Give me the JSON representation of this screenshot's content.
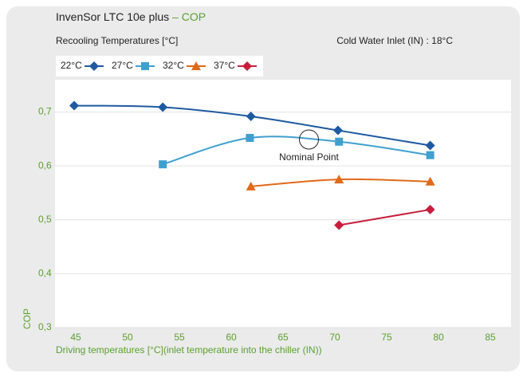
{
  "chart_data": {
    "type": "line",
    "title": "InvenSor LTC 10e plus",
    "title_highlight": "– COP",
    "subtitle": "Recooling Temperatures [°C]",
    "note": "Cold Water Inlet (IN) : 18°C",
    "xlabel": "Driving temperatures [°C](inlet temperature into the chiller (IN))",
    "ylabel": "COP",
    "xlim": [
      43,
      87
    ],
    "xticks": [
      45,
      50,
      55,
      60,
      65,
      70,
      75,
      80,
      85
    ],
    "ylim": [
      0.3,
      0.76
    ],
    "yticks": [
      {
        "value": 0.3,
        "label": "0,3"
      },
      {
        "value": 0.4,
        "label": "0,4"
      },
      {
        "value": 0.5,
        "label": "0,5"
      },
      {
        "value": 0.6,
        "label": "0,6"
      },
      {
        "value": 0.7,
        "label": "0,7"
      }
    ],
    "grid": true,
    "smooth": true,
    "series": [
      {
        "name": "22°C",
        "color": "#1f5aa0",
        "marker": "diamond",
        "x": [
          44.85,
          53.4,
          61.9,
          70.3,
          79.2
        ],
        "values": [
          0.712,
          0.709,
          0.692,
          0.666,
          0.638
        ]
      },
      {
        "name": "27°C",
        "color": "#3fa0d0",
        "marker": "square",
        "x": [
          53.4,
          61.8,
          70.4,
          79.2
        ],
        "values": [
          0.603,
          0.652,
          0.645,
          0.62
        ]
      },
      {
        "name": "32°C",
        "color": "#e06a1a",
        "marker": "triangle",
        "x": [
          61.9,
          70.4,
          79.2
        ],
        "values": [
          0.562,
          0.575,
          0.571
        ]
      },
      {
        "name": "37°C",
        "color": "#c81e3c",
        "marker": "diamond",
        "x": [
          70.4,
          79.2
        ],
        "values": [
          0.49,
          0.519
        ]
      }
    ],
    "annotation": {
      "text": "Nominal Point",
      "x": 67.5,
      "y": 0.649
    }
  }
}
